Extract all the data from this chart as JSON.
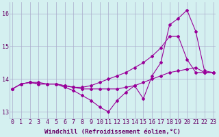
{
  "x": [
    0,
    1,
    2,
    3,
    4,
    5,
    6,
    7,
    8,
    9,
    10,
    11,
    12,
    13,
    14,
    15,
    16,
    17,
    18,
    19,
    20,
    21,
    22,
    23
  ],
  "line1": [
    13.7,
    13.85,
    13.9,
    13.85,
    13.85,
    13.85,
    13.75,
    13.65,
    13.5,
    13.35,
    13.15,
    13.0,
    13.35,
    13.6,
    13.8,
    13.4,
    14.1,
    14.5,
    15.65,
    15.85,
    16.1,
    15.45,
    14.25,
    14.2
  ],
  "line2": [
    13.7,
    13.85,
    13.9,
    13.9,
    13.85,
    13.85,
    13.8,
    13.75,
    13.7,
    13.7,
    13.7,
    13.7,
    13.7,
    13.75,
    13.8,
    13.9,
    14.0,
    14.1,
    14.2,
    14.25,
    14.3,
    14.35,
    14.2,
    14.2
  ],
  "line3": [
    13.7,
    13.85,
    13.9,
    13.85,
    13.85,
    13.85,
    13.8,
    13.75,
    13.75,
    13.8,
    13.9,
    14.0,
    14.1,
    14.2,
    14.35,
    14.5,
    14.7,
    14.95,
    15.3,
    15.3,
    14.6,
    14.2,
    14.2,
    14.2
  ],
  "line_color": "#990099",
  "bg_color": "#d4f0f0",
  "grid_color": "#aaaacc",
  "xlabel": "Windchill (Refroidissement éolien,°C)",
  "ylim": [
    12.8,
    16.35
  ],
  "xlim": [
    -0.3,
    23.3
  ],
  "yticks": [
    13,
    14,
    15,
    16
  ],
  "xticks": [
    0,
    1,
    2,
    3,
    4,
    5,
    6,
    7,
    8,
    9,
    10,
    11,
    12,
    13,
    14,
    15,
    16,
    17,
    18,
    19,
    20,
    21,
    22,
    23
  ],
  "marker": "D",
  "markersize": 2.0,
  "linewidth": 0.8,
  "xlabel_fontsize": 6.5,
  "tick_fontsize": 6.0,
  "tick_color": "#660066",
  "fig_width": 3.2,
  "fig_height": 2.0,
  "dpi": 100
}
